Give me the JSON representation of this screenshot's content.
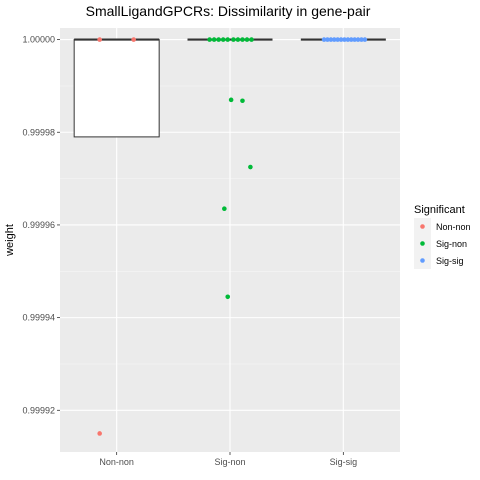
{
  "chart_data": {
    "type": "boxplot",
    "title": "SmallLigandGPCRs: Dissimilarity in gene-pair",
    "xlabel": "",
    "ylabel": "weight",
    "ylim": [
      0.999911,
      1.0000025
    ],
    "yticks": [
      0.99992,
      0.99994,
      0.99996,
      0.99998,
      1.0
    ],
    "ytick_labels": [
      "0.99992",
      "0.99994",
      "0.99996",
      "0.99998",
      "1.00000"
    ],
    "categories": [
      "Non-non",
      "Sig-non",
      "Sig-sig"
    ],
    "grid": true,
    "legend": {
      "title": "Significant",
      "placement": "right",
      "entries": [
        {
          "label": "Non-non",
          "color": "#F8766D"
        },
        {
          "label": "Sig-non",
          "color": "#00BA38"
        },
        {
          "label": "Sig-sig",
          "color": "#619CFF"
        }
      ]
    },
    "boxes": [
      {
        "category": "Non-non",
        "q1": 0.999979,
        "median": 1.0,
        "q3": 1.0,
        "whisker_low": 0.999979,
        "whisker_high": 1.0
      },
      {
        "category": "Sig-non",
        "q1": 1.0,
        "median": 1.0,
        "q3": 1.0,
        "whisker_low": 1.0,
        "whisker_high": 1.0
      },
      {
        "category": "Sig-sig",
        "q1": 1.0,
        "median": 1.0,
        "q3": 1.0,
        "whisker_low": 1.0,
        "whisker_high": 1.0
      }
    ],
    "points": [
      {
        "category": "Non-non",
        "jitter": -0.15,
        "y": 1.0
      },
      {
        "category": "Non-non",
        "jitter": 0.15,
        "y": 1.0
      },
      {
        "category": "Non-non",
        "jitter": -0.15,
        "y": 0.999915
      },
      {
        "category": "Sig-non",
        "jitter": -0.18,
        "y": 1.0
      },
      {
        "category": "Sig-non",
        "jitter": -0.14,
        "y": 1.0
      },
      {
        "category": "Sig-non",
        "jitter": -0.1,
        "y": 1.0
      },
      {
        "category": "Sig-non",
        "jitter": -0.06,
        "y": 1.0
      },
      {
        "category": "Sig-non",
        "jitter": -0.02,
        "y": 1.0
      },
      {
        "category": "Sig-non",
        "jitter": 0.03,
        "y": 1.0
      },
      {
        "category": "Sig-non",
        "jitter": 0.07,
        "y": 1.0
      },
      {
        "category": "Sig-non",
        "jitter": 0.11,
        "y": 1.0
      },
      {
        "category": "Sig-non",
        "jitter": 0.15,
        "y": 1.0
      },
      {
        "category": "Sig-non",
        "jitter": 0.19,
        "y": 1.0
      },
      {
        "category": "Sig-non",
        "jitter": 0.01,
        "y": 0.999987
      },
      {
        "category": "Sig-non",
        "jitter": 0.11,
        "y": 0.9999868
      },
      {
        "category": "Sig-non",
        "jitter": 0.18,
        "y": 0.9999725
      },
      {
        "category": "Sig-non",
        "jitter": -0.05,
        "y": 0.9999635
      },
      {
        "category": "Sig-non",
        "jitter": -0.02,
        "y": 0.9999445
      },
      {
        "category": "Sig-sig",
        "jitter": -0.17,
        "y": 1.0
      },
      {
        "category": "Sig-sig",
        "jitter": -0.14,
        "y": 1.0
      },
      {
        "category": "Sig-sig",
        "jitter": -0.11,
        "y": 1.0
      },
      {
        "category": "Sig-sig",
        "jitter": -0.08,
        "y": 1.0
      },
      {
        "category": "Sig-sig",
        "jitter": -0.05,
        "y": 1.0
      },
      {
        "category": "Sig-sig",
        "jitter": -0.02,
        "y": 1.0
      },
      {
        "category": "Sig-sig",
        "jitter": 0.01,
        "y": 1.0
      },
      {
        "category": "Sig-sig",
        "jitter": 0.04,
        "y": 1.0
      },
      {
        "category": "Sig-sig",
        "jitter": 0.07,
        "y": 1.0
      },
      {
        "category": "Sig-sig",
        "jitter": 0.1,
        "y": 1.0
      },
      {
        "category": "Sig-sig",
        "jitter": 0.13,
        "y": 1.0
      },
      {
        "category": "Sig-sig",
        "jitter": 0.16,
        "y": 1.0
      },
      {
        "category": "Sig-sig",
        "jitter": 0.19,
        "y": 1.0
      }
    ]
  }
}
